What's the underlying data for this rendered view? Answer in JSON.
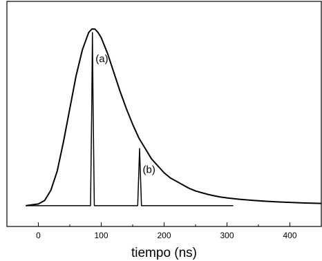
{
  "chart_data": {
    "type": "line",
    "title": "",
    "xlabel": "tiempo (ns)",
    "ylabel": "",
    "xlim": [
      -50,
      450
    ],
    "ylim": [
      -0.12,
      1.18
    ],
    "x_ticks": [
      0,
      100,
      200,
      300,
      400
    ],
    "x_tick_labels": [
      "0",
      "100",
      "200",
      "300",
      "400"
    ],
    "grid": false,
    "legend": "none",
    "y_tick_labels_shown": false,
    "series": [
      {
        "x": [
          -20,
          0,
          10,
          20,
          30,
          40,
          50,
          60,
          70,
          80,
          85,
          90,
          95,
          100,
          110,
          120,
          130,
          140,
          150,
          160,
          170,
          180,
          190,
          200,
          210,
          220,
          230,
          240,
          250,
          260,
          270,
          280,
          290,
          300,
          320,
          340,
          360,
          380,
          400,
          420,
          440,
          450
        ],
        "y": [
          0.0,
          0.01,
          0.03,
          0.09,
          0.2,
          0.37,
          0.56,
          0.75,
          0.9,
          1.0,
          1.02,
          1.02,
          1.0,
          0.97,
          0.88,
          0.77,
          0.66,
          0.56,
          0.47,
          0.39,
          0.33,
          0.27,
          0.23,
          0.19,
          0.16,
          0.14,
          0.12,
          0.1,
          0.085,
          0.075,
          0.065,
          0.057,
          0.05,
          0.045,
          0.037,
          0.031,
          0.026,
          0.022,
          0.019,
          0.016,
          0.014,
          0.013
        ]
      },
      {
        "x": [
          -20,
          83,
          85,
          86,
          87,
          89,
          150
        ],
        "y": [
          0.0,
          0.0,
          0.6,
          1.0,
          0.6,
          0.0,
          0.0
        ]
      },
      {
        "x": [
          150,
          158,
          160,
          161,
          162,
          164,
          310
        ],
        "y": [
          0.0,
          0.0,
          0.22,
          0.33,
          0.22,
          0.0,
          0.0
        ]
      }
    ],
    "annotations": [
      {
        "text": "(a)",
        "x": 91,
        "y": 0.83
      },
      {
        "text": "(b)",
        "x": 166,
        "y": 0.19
      }
    ],
    "colors": {
      "line": "#000000",
      "axis": "#000000",
      "background": "#ffffff"
    }
  }
}
